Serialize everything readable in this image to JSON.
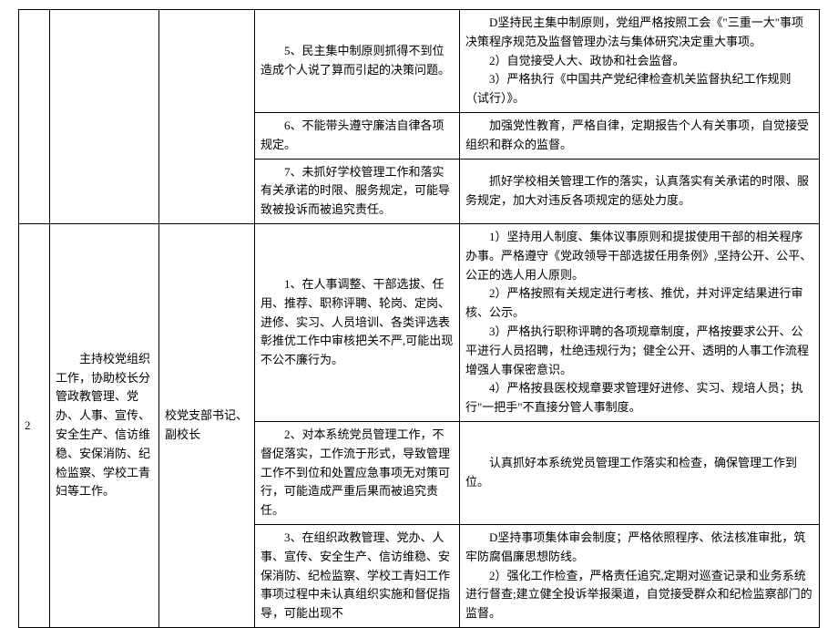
{
  "rows": {
    "r1": {
      "col4": "5、民主集中制原则抓得不到位造成个人说了算而引起的决策问题。",
      "col5": "　　D坚持民主集中制原则，党组严格按照工会《\"三重一大\"事项决策程序规范及监督管理办法与集体研究决定重大事项。\n　　2）自觉接受人大、政协和社会监督。\n　　3）严格执行《中国共产党纪律检查机关监督执纪工作规则（试行）》。"
    },
    "r2": {
      "col4": "6、不能带头遵守廉洁自律各项规定。",
      "col5": "　　加强党性教育，严格自律，定期报告个人有关事项，自觉接受组织和群众的监督。"
    },
    "r3": {
      "col4": "7、未抓好学校管理工作和落实有关承诺的时限、服务规定，可能导致被投诉而被追究责任。",
      "col5": "　　抓好学校相关管理工作的落实，认真落实有关承诺的时限、服务规定，加大对违反各项规定的惩处力度。"
    },
    "g2": {
      "seq": "2",
      "col2": "　　主持校党组织工作，协助校长分管政教管理、党办、人事、宣传、安全生产、信访维稳、安保消防、纪检监察、学校工青妇等工作。",
      "col3": "校党支部书记、副校长",
      "r4": {
        "col4": "1、在人事调整、干部选拔、任用、推荐、职称评聘、轮岗、定岗、进修、实习、人员培训、各类评选表彰推优工作中审核把关不严,可能出现不公不廉行为。",
        "col5": "　　1）坚持用人制度、集体议事原则和提拔使用干部的相关程序办事。严格遵守《党政领导干部选拔任用条例》,坚持公开、公平、公正的选人用人原则。\n　　2）严格按照有关规定进行考核、推优，并对评定结果进行审核、公示。\n　　3）严格执行职称评聘的各项规章制度，严格按要求公开、公平进行人员招聘，杜绝违规行为；健全公开、透明的人事工作流程增强人事保密意识。\n　　4）严格按县医校规章要求管理好进修、实习、规培人员；执行\"一把手\"不直接分管人事制度。"
      },
      "r5": {
        "col4": "2、对本系统党员管理工作，不督促落实，工作流于形式，导致管理工作不到位和处置应急事项无对策可行，可能造成严重后果而被追究责任。",
        "col5": "　　认真抓好本系统党员管理工作落实和检查，确保管理工作到位。"
      },
      "r6": {
        "col4": "3、在组织政教管理、党办、人事、宣传、安全生产、信访维稳、安保消防、纪检监察、学校工青妇工作事项过程中未认真组织实施和督促指导，可能出现不",
        "col5": "　　D坚持事项集体审会制度；严格依照程序、依法核准审批，筑牢防腐倡廉思想防线。\n　　2）强化工作检查，严格责任追究,定期对巡查记录和业务系统进行督查;建立健全投诉举报渠道，自觉接受群众和纪检监察部门的监督。"
      }
    }
  }
}
